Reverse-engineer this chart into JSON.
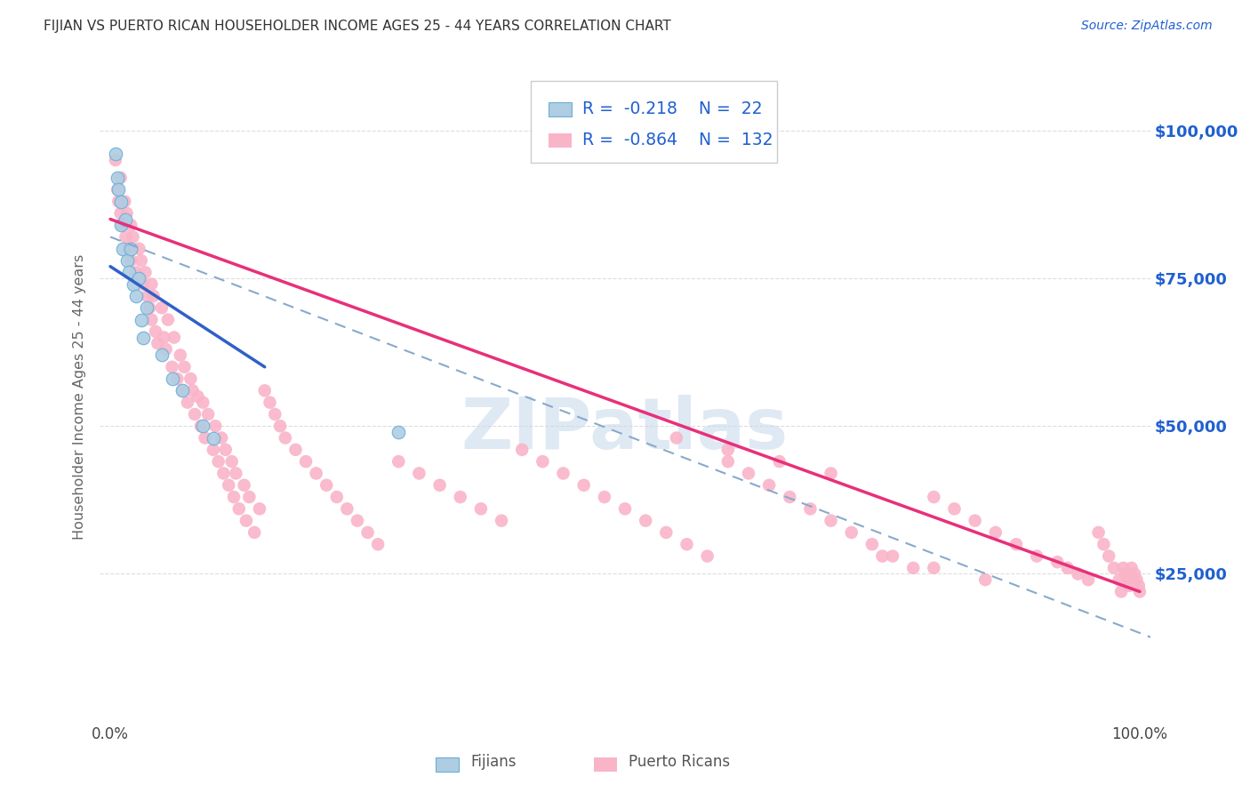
{
  "title": "FIJIAN VS PUERTO RICAN HOUSEHOLDER INCOME AGES 25 - 44 YEARS CORRELATION CHART",
  "source": "Source: ZipAtlas.com",
  "ylabel": "Householder Income Ages 25 - 44 years",
  "ytick_labels": [
    "$25,000",
    "$50,000",
    "$75,000",
    "$100,000"
  ],
  "ytick_values": [
    25000,
    50000,
    75000,
    100000
  ],
  "ylim": [
    0,
    110000
  ],
  "xlim": [
    -0.01,
    1.01
  ],
  "legend_label1": "Fijians",
  "legend_label2": "Puerto Ricans",
  "R1": -0.218,
  "N1": 22,
  "R2": -0.864,
  "N2": 132,
  "fijian_color_fill": "#aecde3",
  "fijian_color_edge": "#6aaed6",
  "puerto_rican_color_fill": "#f9b4c8",
  "line1_color": "#3060c8",
  "line2_color": "#e8307a",
  "dashed_line_color": "#88aacc",
  "background_color": "#ffffff",
  "grid_color": "#dddddd",
  "title_color": "#333333",
  "right_axis_color": "#2060d0",
  "legend_text_color": "#2060d0",
  "watermark_color": "#c5d8ea",
  "fijian_x": [
    0.005,
    0.007,
    0.008,
    0.01,
    0.01,
    0.012,
    0.015,
    0.016,
    0.018,
    0.02,
    0.022,
    0.025,
    0.028,
    0.03,
    0.032,
    0.035,
    0.05,
    0.06,
    0.07,
    0.09,
    0.1,
    0.28
  ],
  "fijian_y": [
    96000,
    92000,
    90000,
    88000,
    84000,
    80000,
    85000,
    78000,
    76000,
    80000,
    74000,
    72000,
    75000,
    68000,
    65000,
    70000,
    62000,
    58000,
    56000,
    50000,
    48000,
    49000
  ],
  "pr_x": [
    0.005,
    0.007,
    0.008,
    0.01,
    0.01,
    0.012,
    0.014,
    0.015,
    0.016,
    0.018,
    0.02,
    0.02,
    0.022,
    0.025,
    0.028,
    0.03,
    0.032,
    0.034,
    0.036,
    0.038,
    0.04,
    0.04,
    0.042,
    0.044,
    0.046,
    0.05,
    0.052,
    0.054,
    0.056,
    0.06,
    0.062,
    0.065,
    0.068,
    0.07,
    0.072,
    0.075,
    0.078,
    0.08,
    0.082,
    0.085,
    0.088,
    0.09,
    0.092,
    0.095,
    0.1,
    0.102,
    0.105,
    0.108,
    0.11,
    0.112,
    0.115,
    0.118,
    0.12,
    0.122,
    0.125,
    0.13,
    0.132,
    0.135,
    0.14,
    0.145,
    0.15,
    0.155,
    0.16,
    0.165,
    0.17,
    0.18,
    0.19,
    0.2,
    0.21,
    0.22,
    0.23,
    0.24,
    0.25,
    0.26,
    0.28,
    0.3,
    0.32,
    0.34,
    0.36,
    0.38,
    0.4,
    0.42,
    0.44,
    0.46,
    0.48,
    0.5,
    0.52,
    0.54,
    0.56,
    0.58,
    0.6,
    0.62,
    0.64,
    0.66,
    0.68,
    0.7,
    0.72,
    0.74,
    0.76,
    0.78,
    0.8,
    0.82,
    0.84,
    0.86,
    0.88,
    0.9,
    0.92,
    0.93,
    0.94,
    0.95,
    0.96,
    0.965,
    0.97,
    0.975,
    0.98,
    0.982,
    0.984,
    0.986,
    0.988,
    0.99,
    0.992,
    0.995,
    0.997,
    0.999,
    1.0,
    0.75,
    0.8,
    0.85,
    0.55,
    0.6,
    0.65,
    0.7
  ],
  "pr_y": [
    95000,
    90000,
    88000,
    92000,
    86000,
    84000,
    88000,
    82000,
    86000,
    80000,
    84000,
    78000,
    82000,
    76000,
    80000,
    78000,
    74000,
    76000,
    72000,
    70000,
    74000,
    68000,
    72000,
    66000,
    64000,
    70000,
    65000,
    63000,
    68000,
    60000,
    65000,
    58000,
    62000,
    56000,
    60000,
    54000,
    58000,
    56000,
    52000,
    55000,
    50000,
    54000,
    48000,
    52000,
    46000,
    50000,
    44000,
    48000,
    42000,
    46000,
    40000,
    44000,
    38000,
    42000,
    36000,
    40000,
    34000,
    38000,
    32000,
    36000,
    56000,
    54000,
    52000,
    50000,
    48000,
    46000,
    44000,
    42000,
    40000,
    38000,
    36000,
    34000,
    32000,
    30000,
    44000,
    42000,
    40000,
    38000,
    36000,
    34000,
    46000,
    44000,
    42000,
    40000,
    38000,
    36000,
    34000,
    32000,
    30000,
    28000,
    44000,
    42000,
    40000,
    38000,
    36000,
    34000,
    32000,
    30000,
    28000,
    26000,
    38000,
    36000,
    34000,
    32000,
    30000,
    28000,
    27000,
    26000,
    25000,
    24000,
    32000,
    30000,
    28000,
    26000,
    24000,
    22000,
    26000,
    25000,
    24000,
    23000,
    26000,
    25000,
    24000,
    23000,
    22000,
    28000,
    26000,
    24000,
    48000,
    46000,
    44000,
    42000
  ]
}
